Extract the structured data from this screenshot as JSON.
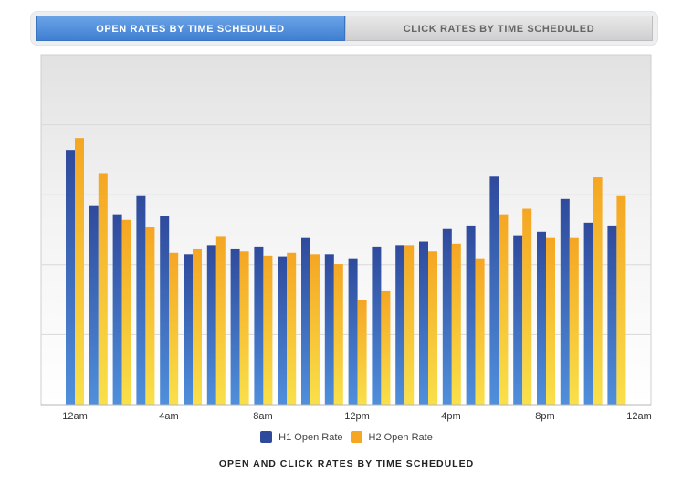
{
  "tabs": [
    {
      "label": "OPEN RATES BY TIME SCHEDULED",
      "active": true
    },
    {
      "label": "CLICK RATES BY TIME SCHEDULED",
      "active": false
    }
  ],
  "caption": "OPEN AND CLICK RATES BY TIME SCHEDULED",
  "chart_data": {
    "type": "bar",
    "x_tick_labels": [
      "12am",
      "4am",
      "8am",
      "12pm",
      "4pm",
      "8pm",
      "12am"
    ],
    "ylim": [
      0,
      5
    ],
    "grid": true,
    "legend_position": "bottom",
    "y_tick_labels_visible": false,
    "series": [
      {
        "name": "H1 Open Rate",
        "color": "#2f4a9c",
        "color_light": "#4f8fdc",
        "values": [
          3.64,
          2.85,
          2.72,
          2.98,
          2.7,
          2.15,
          2.28,
          2.22,
          2.26,
          2.12,
          2.38,
          2.15,
          2.08,
          2.26,
          2.28,
          2.33,
          2.51,
          2.56,
          3.26,
          2.42,
          2.47,
          2.94,
          2.6,
          2.56
        ]
      },
      {
        "name": "H2 Open Rate",
        "color": "#f5a623",
        "color_light": "#f9e04a",
        "values": [
          3.81,
          3.31,
          2.64,
          2.54,
          2.17,
          2.22,
          2.41,
          2.19,
          2.13,
          2.17,
          2.15,
          2.01,
          1.49,
          1.62,
          2.28,
          2.19,
          2.3,
          2.08,
          2.72,
          2.8,
          2.38,
          2.38,
          3.25,
          2.98
        ]
      }
    ]
  }
}
